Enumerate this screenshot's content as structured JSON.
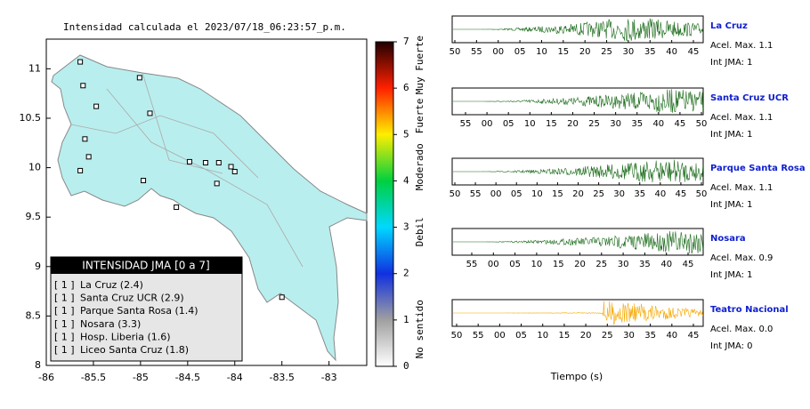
{
  "chart_data": {
    "type": "map",
    "title": "Intensidad calculada el 2023/07/18_06:23:57_p.m.",
    "xlim": [
      -86,
      -82.6
    ],
    "ylim": [
      8,
      11.3
    ],
    "xticks": [
      -86,
      -85.5,
      -85,
      -84.5,
      -84,
      -83.5,
      -83
    ],
    "yticks": [
      8,
      8.5,
      9,
      9.5,
      10,
      10.5,
      11
    ],
    "land_color": "#b9eeee",
    "stations": [
      {
        "lon": -85.64,
        "lat": 11.07
      },
      {
        "lon": -85.61,
        "lat": 10.83
      },
      {
        "lon": -85.47,
        "lat": 10.62
      },
      {
        "lon": -85.59,
        "lat": 10.29
      },
      {
        "lon": -85.55,
        "lat": 10.11
      },
      {
        "lon": -85.64,
        "lat": 9.97
      },
      {
        "lon": -85.01,
        "lat": 10.91
      },
      {
        "lon": -84.9,
        "lat": 10.55
      },
      {
        "lon": -84.97,
        "lat": 9.87
      },
      {
        "lon": -84.62,
        "lat": 9.6
      },
      {
        "lon": -84.48,
        "lat": 10.06
      },
      {
        "lon": -84.31,
        "lat": 10.05
      },
      {
        "lon": -84.17,
        "lat": 10.05
      },
      {
        "lon": -84.04,
        "lat": 10.01
      },
      {
        "lon": -84,
        "lat": 9.96
      },
      {
        "lon": -84.19,
        "lat": 9.84
      },
      {
        "lon": -83.5,
        "lat": 8.69
      }
    ],
    "colorbar": {
      "lim": [
        0,
        7
      ],
      "ticks": [
        0,
        1,
        2,
        3,
        4,
        5,
        6,
        7
      ],
      "colors": [
        "#ffffff",
        "#a0a0a0",
        "#1030e0",
        "#00d8ff",
        "#00d040",
        "#ffee00",
        "#ff2000",
        "#200000"
      ],
      "labels": [
        {
          "text": "No sentido",
          "value": 0.8
        },
        {
          "text": "Debil",
          "value": 2.9
        },
        {
          "text": "Moderado",
          "value": 4.3
        },
        {
          "text": "Fuerte",
          "value": 5.4
        },
        {
          "text": "Muy Fuerte",
          "value": 6.5
        }
      ]
    },
    "legend": {
      "title": "INTENSIDAD JMA [0 a 7]",
      "rows": [
        {
          "jma": "[ 1 ]",
          "text": "La Cruz (2.4)"
        },
        {
          "jma": "[ 1 ]",
          "text": "Santa Cruz UCR (2.9)"
        },
        {
          "jma": "[ 1 ]",
          "text": "Parque Santa Rosa (1.4)"
        },
        {
          "jma": "[ 1 ]",
          "text": "Nosara (3.3)"
        },
        {
          "jma": "[ 1 ]",
          "text": "Hosp. Liberia (1.6)"
        },
        {
          "jma": "[ 1 ]",
          "text": "Liceo Santa Cruz (1.8)"
        }
      ]
    }
  },
  "seismograms": {
    "xlabel": "Tiempo (s)",
    "panels": [
      {
        "name": "La Cruz",
        "acel": "Acel. Max. 1.1",
        "jma": "Int JMA: 1",
        "color": "#1a6b1a",
        "ticks": [
          "50",
          "55",
          "00",
          "05",
          "10",
          "15",
          "20",
          "25",
          "30",
          "35",
          "40",
          "45"
        ]
      },
      {
        "name": "Santa Cruz UCR",
        "acel": "Acel. Max. 1.1",
        "jma": "Int JMA: 1",
        "color": "#1a6b1a",
        "ticks": [
          "55",
          "00",
          "05",
          "10",
          "15",
          "20",
          "25",
          "30",
          "35",
          "40",
          "45",
          "50"
        ]
      },
      {
        "name": "Parque Santa Rosa",
        "acel": "Acel. Max. 1.1",
        "jma": "Int JMA: 1",
        "color": "#1a6b1a",
        "ticks": [
          "50",
          "55",
          "00",
          "05",
          "10",
          "15",
          "20",
          "25",
          "30",
          "35",
          "40",
          "45",
          "50"
        ]
      },
      {
        "name": "Nosara",
        "acel": "Acel. Max. 0.9",
        "jma": "Int JMA: 1",
        "color": "#1a6b1a",
        "ticks": [
          "55",
          "00",
          "05",
          "10",
          "15",
          "20",
          "25",
          "30",
          "35",
          "40",
          "45"
        ]
      },
      {
        "name": "Teatro Nacional",
        "acel": "Acel. Max. 0.0",
        "jma": "Int JMA: 0",
        "color": "#f5a800",
        "ticks": [
          "50",
          "55",
          "00",
          "05",
          "10",
          "15",
          "20",
          "25",
          "30",
          "35",
          "40",
          "45"
        ]
      }
    ]
  }
}
